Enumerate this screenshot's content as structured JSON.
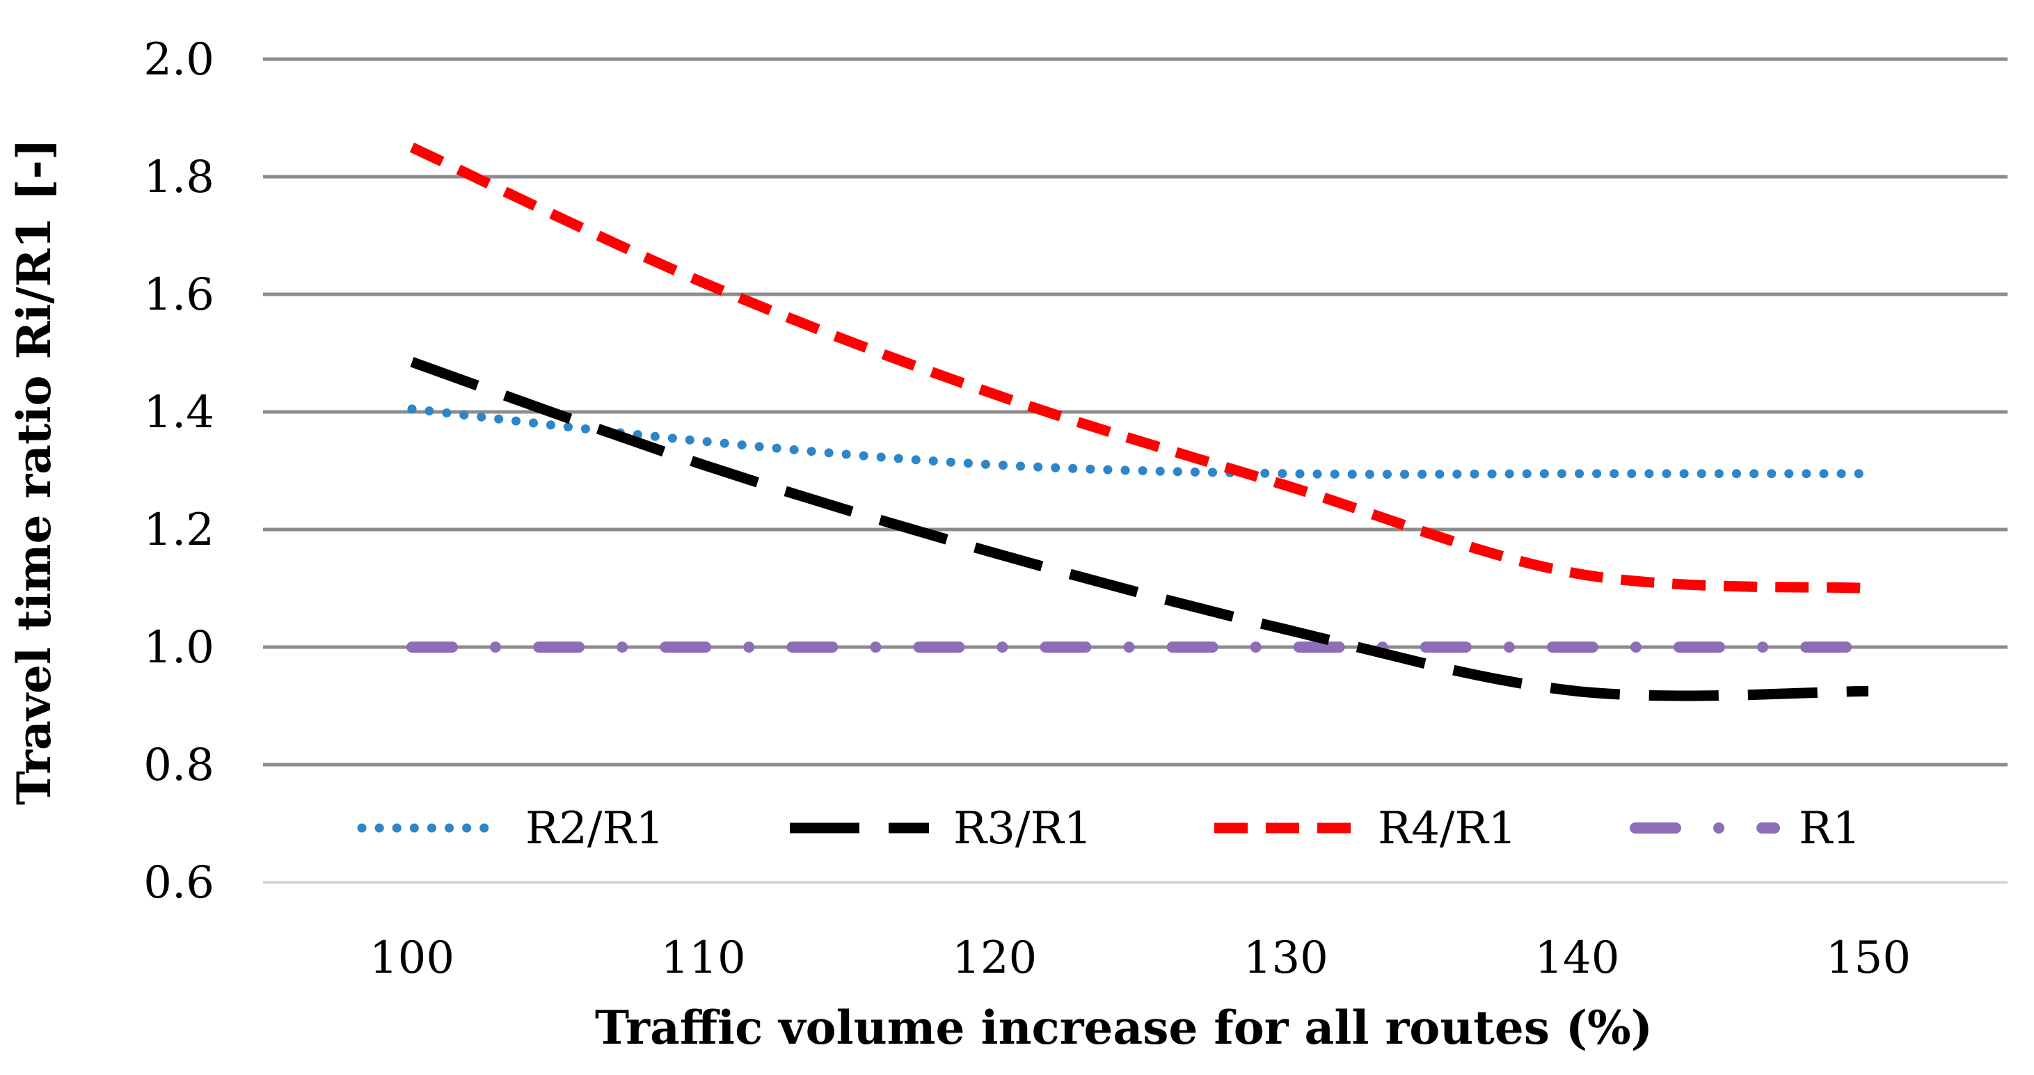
{
  "chart_data": {
    "type": "line",
    "title": "",
    "xlabel": "Traffic volume increase for all routes (%)",
    "ylabel": "Travel time ratio Ri/R1 [-]",
    "x": [
      100,
      110,
      120,
      130,
      140,
      150
    ],
    "x_ticks": [
      "100",
      "110",
      "120",
      "130",
      "140",
      "150"
    ],
    "xlim": [
      100,
      150
    ],
    "ylim": [
      0.6,
      2.0
    ],
    "y_ticks": [
      "0.6",
      "0.8",
      "1.0",
      "1.2",
      "1.4",
      "1.6",
      "1.8",
      "2.0"
    ],
    "grid": true,
    "legend_position": "bottom-inside",
    "series": [
      {
        "name": "R2/R1",
        "color": "#2E86C8",
        "style": "dotted",
        "values": [
          1.405,
          1.35,
          1.31,
          1.295,
          1.295,
          1.295
        ]
      },
      {
        "name": "R3/R1",
        "color": "#000000",
        "style": "long-dash",
        "values": [
          1.485,
          1.31,
          1.16,
          1.03,
          0.925,
          0.925
        ]
      },
      {
        "name": "R4/R1",
        "color": "#FF0000",
        "style": "dashed",
        "values": [
          1.85,
          1.62,
          1.43,
          1.275,
          1.125,
          1.1
        ]
      },
      {
        "name": "R1",
        "color": "#8E6DB8",
        "style": "dash-dot",
        "values": [
          1.0,
          1.0,
          1.0,
          1.0,
          1.0,
          1.0
        ]
      }
    ]
  }
}
